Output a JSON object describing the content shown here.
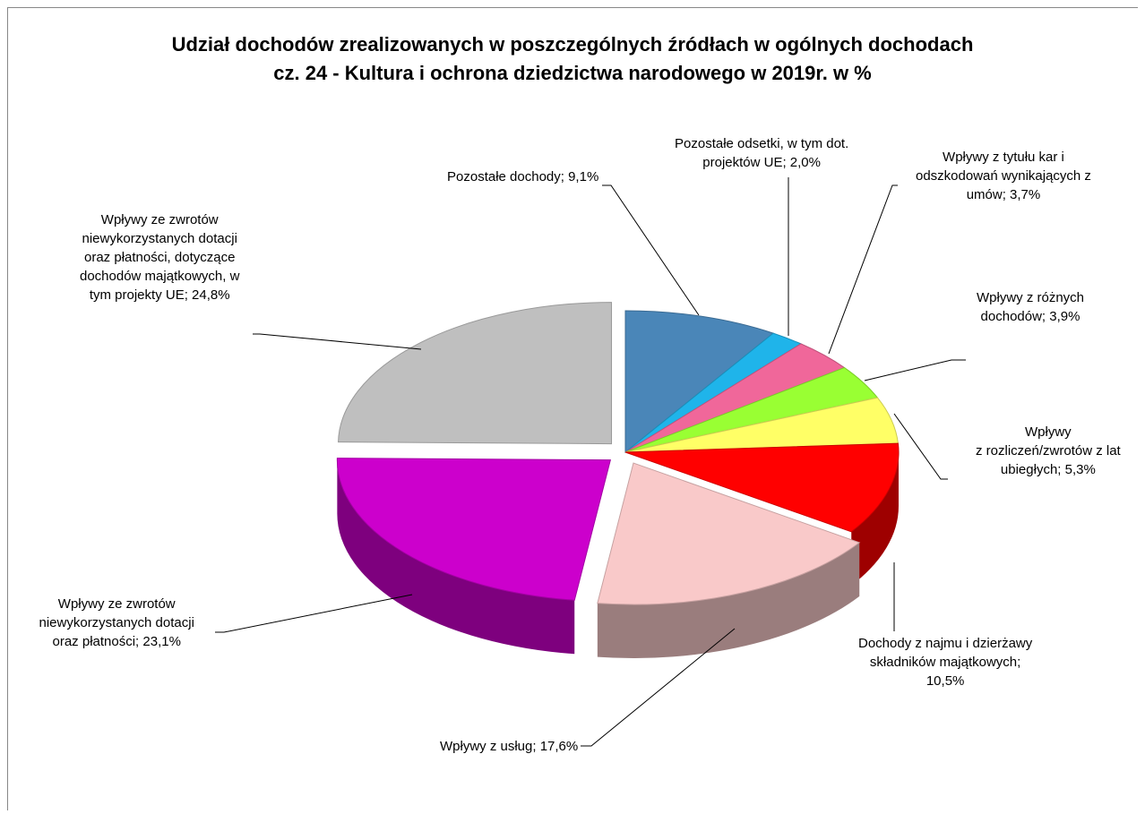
{
  "chart_data": {
    "type": "pie3d",
    "title": "Udział dochodów zrealizowanych w poszczególnych źródłach w ogólnych dochodach\ncz. 24 - Kultura i ochrona dziedzictwa narodowego w 2019r. w %",
    "values": [
      9.1,
      2.0,
      3.7,
      3.9,
      5.3,
      10.5,
      17.6,
      23.1,
      24.8
    ],
    "value_labels": [
      "Pozostałe dochody; 9,1%",
      "Pozostałe odsetki, w tym dot.\nprojektów UE; 2,0%",
      "Wpływy z tytułu kar i\nodszkodowań wynikających z\numów; 3,7%",
      "Wpływy z różnych\ndochodów; 3,9%",
      "Wpływy\nz rozliczeń/zwrotów z lat\nubiegłych; 5,3%",
      "Dochody z najmu i dzierżawy\nskładników majątkowych;\n10,5%",
      "Wpływy z usług; 17,6%",
      "Wpływy ze zwrotów\nniewykorzystanych dotacji\noraz płatności; 23,1%",
      "Wpływy ze zwrotów\nniewykorzystanych dotacji\noraz płatności, dotyczące\ndochodów majątkowych, w\ntym projekty UE; 24,8%"
    ],
    "colors": [
      "#4a86b8",
      "#1fb4ea",
      "#f0679a",
      "#99ff33",
      "#ffff66",
      "#ff0000",
      "#f9c9c9",
      "#cc00cc",
      "#bfbfbf"
    ]
  }
}
